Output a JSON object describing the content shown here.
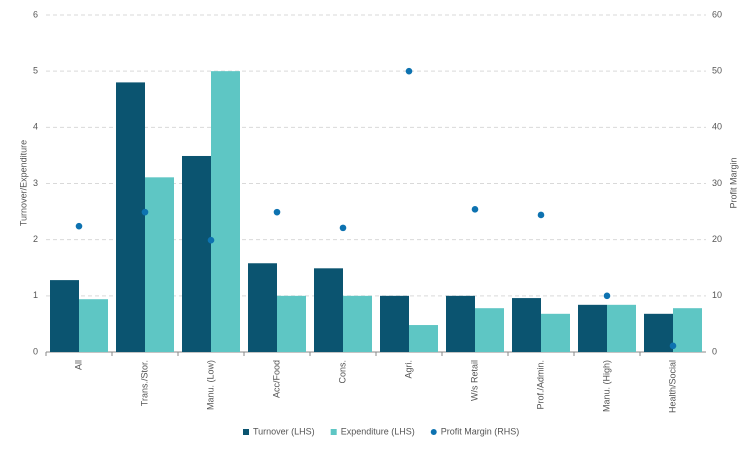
{
  "chart_data": {
    "type": "bar",
    "categories": [
      "All",
      "Trans./Stor.",
      "Manu. (Low)",
      "Acc/Food",
      "Cons.",
      "Agri.",
      "W/s Retail",
      "Prof./Admin.",
      "Manu. (High)",
      "Health/Social"
    ],
    "series": [
      {
        "name": "Turnover (LHS)",
        "color": "#0b5470",
        "values": [
          1.28,
          4.8,
          3.49,
          1.58,
          1.49,
          1.0,
          1.0,
          0.96,
          0.84,
          0.68
        ]
      },
      {
        "name": "Expenditure (LHS)",
        "color": "#5ec6c4",
        "values": [
          0.94,
          3.11,
          5.0,
          1.0,
          1.0,
          0.48,
          0.78,
          0.68,
          0.84,
          0.78
        ]
      },
      {
        "name": "Profit Margin (RHS)",
        "color": "#0d72b0",
        "axis": "y2",
        "values": [
          22.4,
          24.9,
          19.9,
          24.9,
          22.1,
          50,
          25.4,
          24.4,
          10,
          1.1
        ]
      }
    ],
    "y_label": "Turnover/Expenditure",
    "y2_label": "Profit Margin",
    "ylim": [
      0,
      6
    ],
    "yticks": [
      0,
      1,
      2,
      3,
      4,
      5,
      6
    ],
    "y2lim": [
      0,
      60
    ],
    "y2ticks": [
      0,
      10,
      20,
      30,
      40,
      50,
      60
    ],
    "grid": true,
    "legend": "bottom"
  }
}
